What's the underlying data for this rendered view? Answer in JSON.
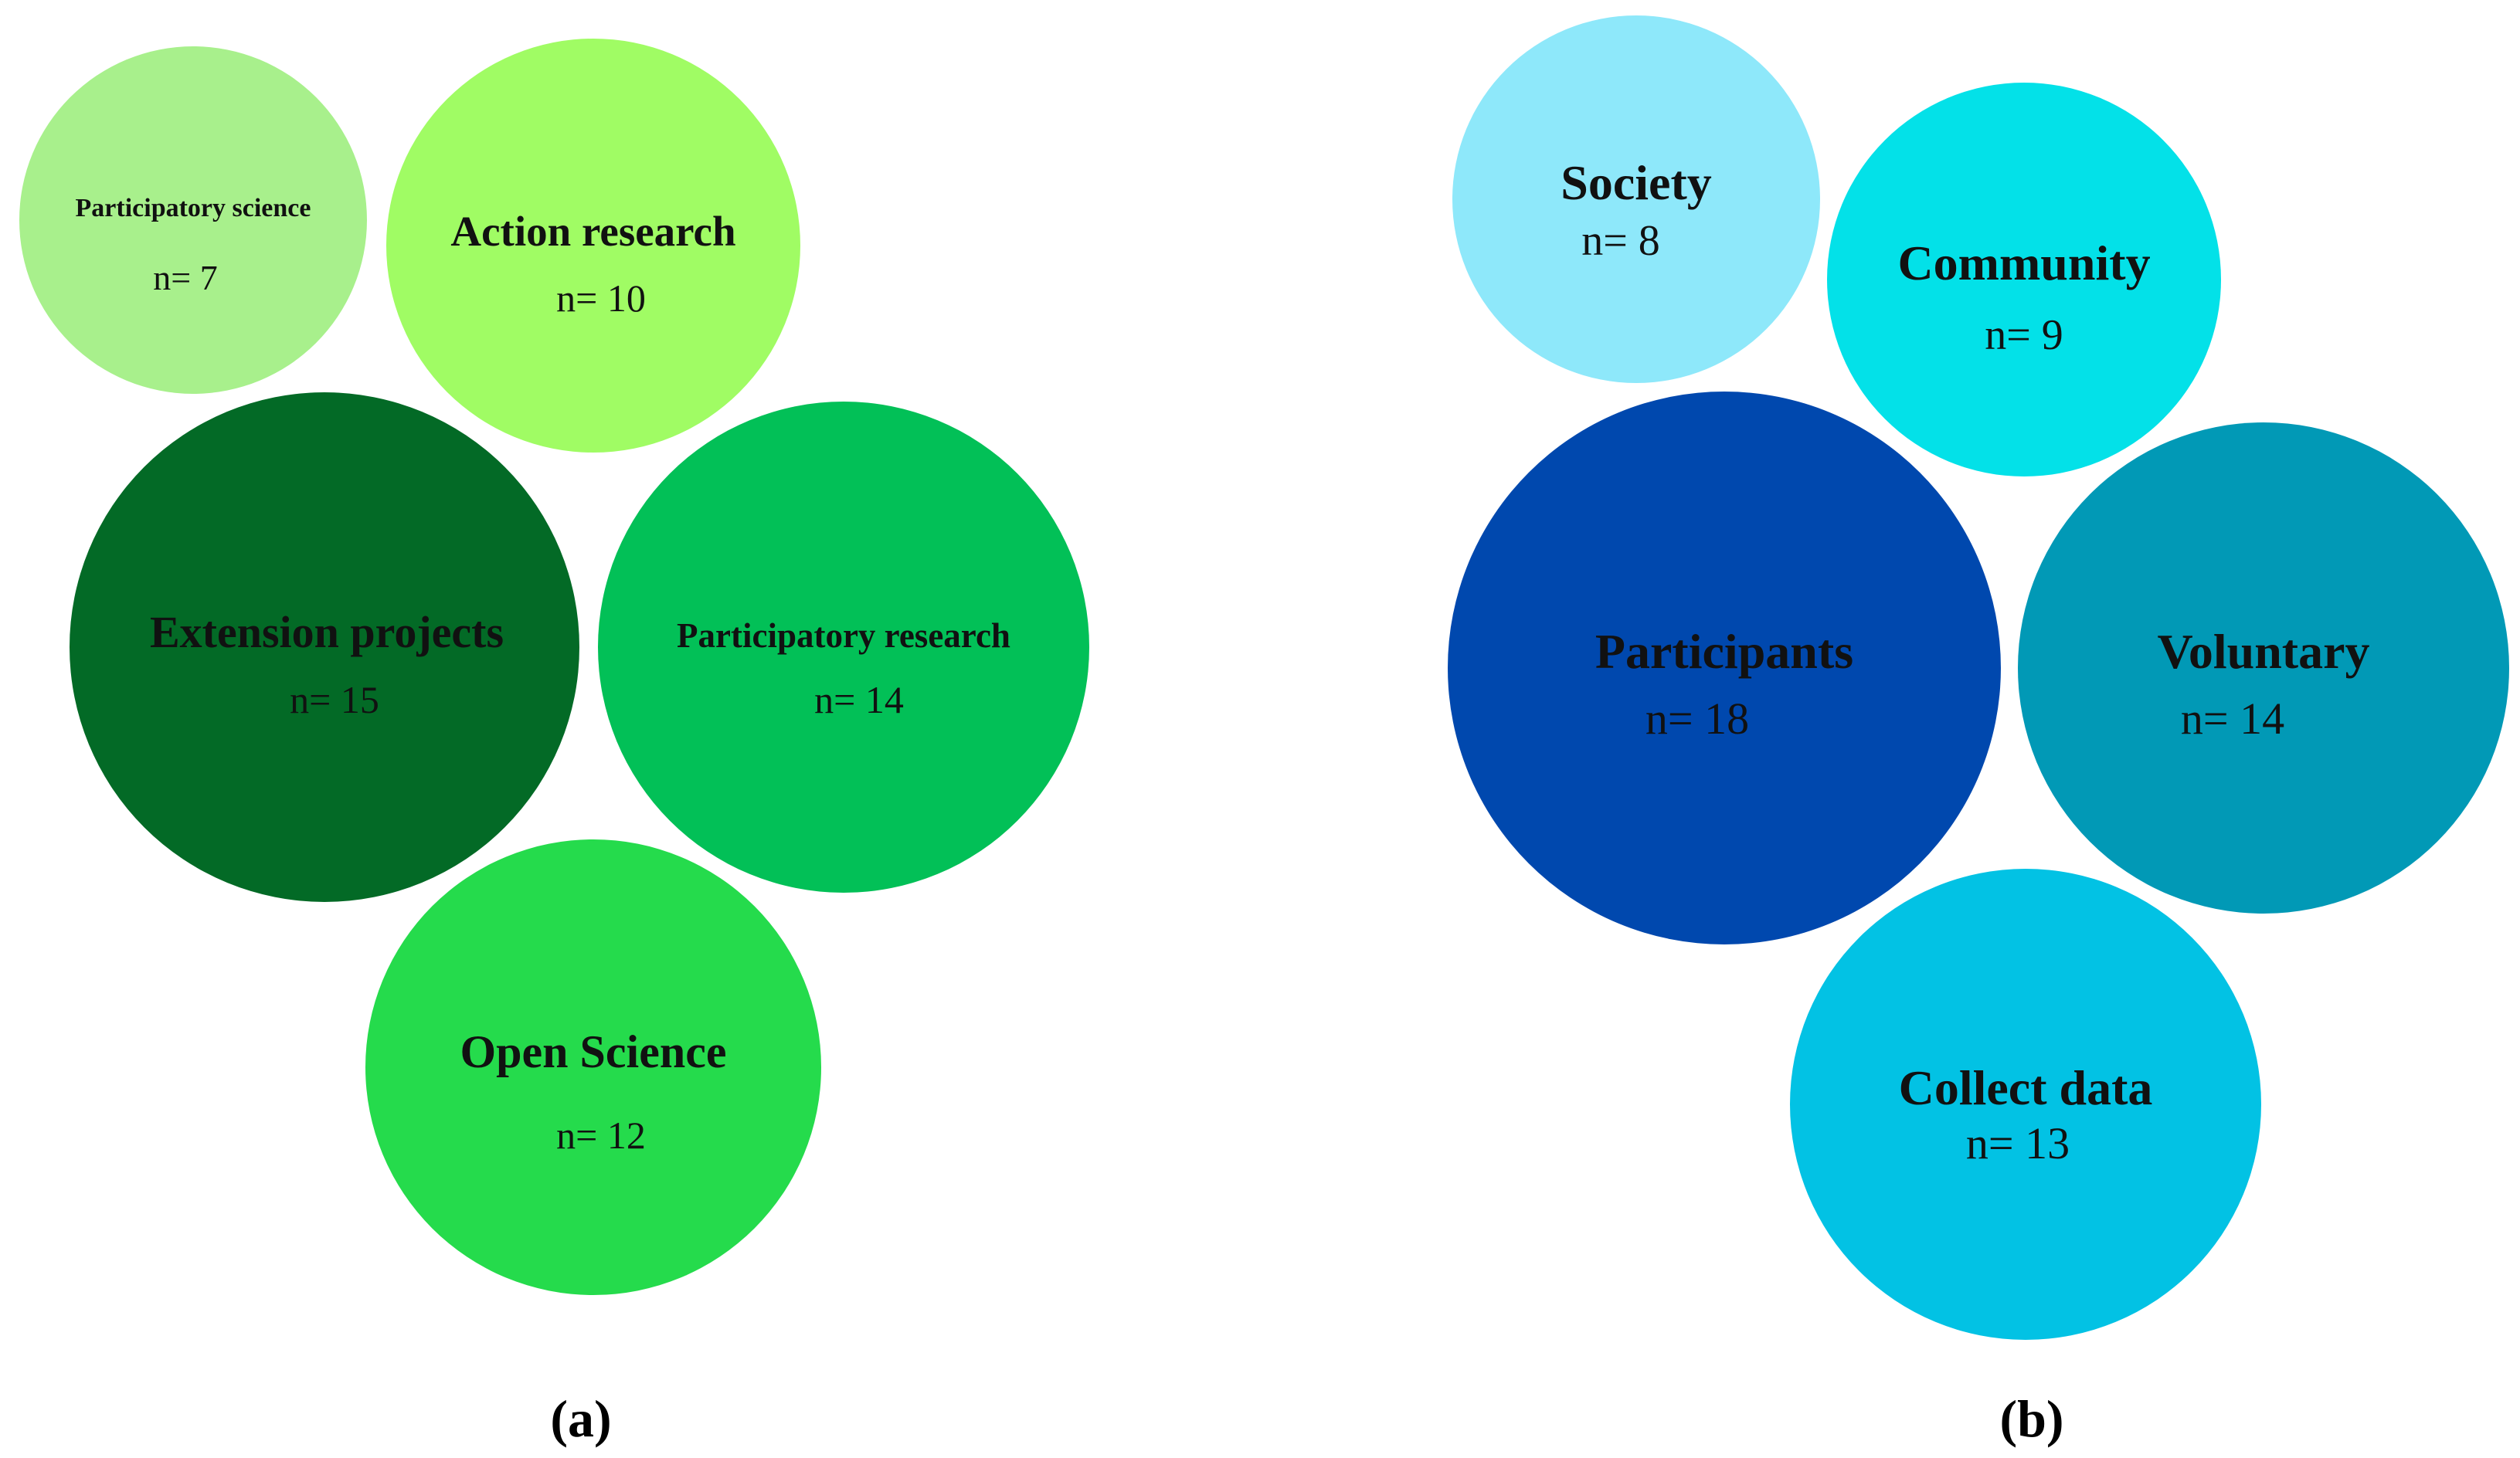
{
  "chart_data": [
    {
      "type": "bubble",
      "panel_label": "(a)",
      "bubbles": [
        {
          "label": "Participatory science",
          "count_text": "n= 7",
          "value": 7,
          "color": "#a8f08c"
        },
        {
          "label": "Action research",
          "count_text": "n= 10",
          "value": 10,
          "color": "#a0fc64"
        },
        {
          "label": "Extension projects",
          "count_text": "n= 15",
          "value": 15,
          "color": "#036a26"
        },
        {
          "label": "Participatory research",
          "count_text": "n= 14",
          "value": 14,
          "color": "#02c057"
        },
        {
          "label": "Open Science",
          "count_text": "n= 12",
          "value": 12,
          "color": "#25db4c"
        }
      ]
    },
    {
      "type": "bubble",
      "panel_label": "(b)",
      "bubbles": [
        {
          "label": "Society",
          "count_text": "n= 8",
          "value": 8,
          "color": "#8ee8fa"
        },
        {
          "label": "Community",
          "count_text": "n= 9",
          "value": 9,
          "color": "#03e1e8"
        },
        {
          "label": "Participants",
          "count_text": "n= 18",
          "value": 18,
          "color": "#0048ae"
        },
        {
          "label": "Voluntary",
          "count_text": "n= 14",
          "value": 14,
          "color": "#0199b6"
        },
        {
          "label": "Collect data",
          "count_text": "n= 13",
          "value": 13,
          "color": "#02c2e4"
        }
      ]
    }
  ]
}
